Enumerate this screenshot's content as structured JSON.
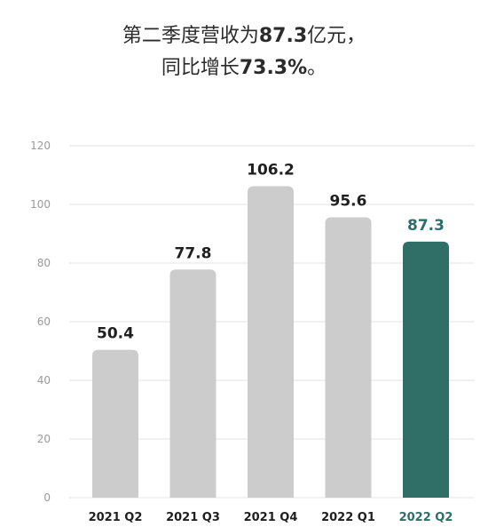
{
  "headline": {
    "line1_prefix": "第二季度营收为",
    "line1_value": "87.3",
    "line1_suffix": "亿元，",
    "line2_prefix": "同比增长",
    "line2_value": "73.3%",
    "line2_suffix": "。"
  },
  "colors": {
    "bar_default": "#cccccc",
    "bar_highlight": "#2f6f68",
    "label_default": "#1f1f1f",
    "label_highlight": "#2f6f68",
    "gridline": "#e3e3e3",
    "tick_text": "#9a9a9a"
  },
  "chart_data": {
    "type": "bar",
    "categories": [
      "2021 Q2",
      "2021 Q3",
      "2021 Q4",
      "2022 Q1",
      "2022 Q2"
    ],
    "values": [
      50.4,
      77.8,
      106.2,
      95.6,
      87.3
    ],
    "value_labels": [
      "50.4",
      "77.8",
      "106.2",
      "95.6",
      "87.3"
    ],
    "highlight_index": 4,
    "ylim": [
      0,
      120
    ],
    "yticks": [
      0,
      20,
      40,
      60,
      80,
      100,
      120
    ],
    "ytick_labels": [
      "0",
      "20",
      "40",
      "60",
      "80",
      "100",
      "120"
    ],
    "grid": true,
    "legend": "none"
  }
}
